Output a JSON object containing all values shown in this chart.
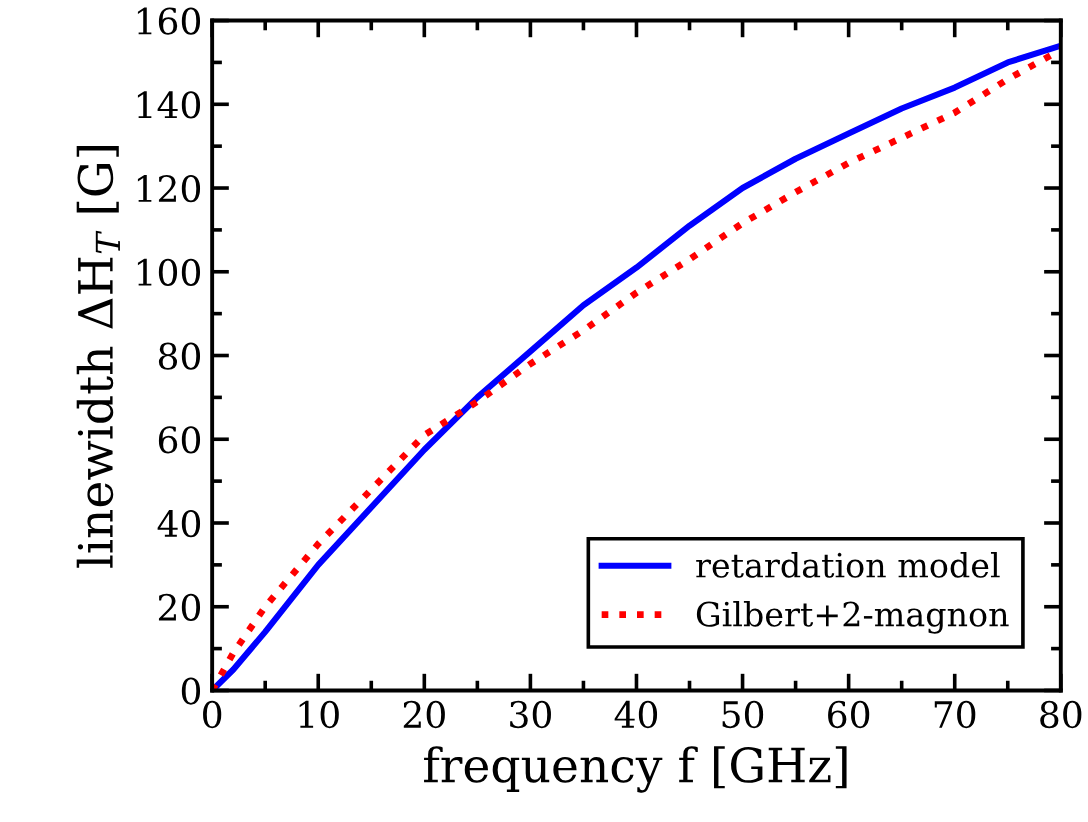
{
  "chart_data": {
    "type": "line",
    "xlabel": "frequency f [GHz]",
    "ylabel": "linewidth ΔH$_{T}$ [G]",
    "xlim": [
      0,
      80
    ],
    "ylim": [
      0,
      160
    ],
    "xticks": [
      0,
      10,
      20,
      30,
      40,
      50,
      60,
      70,
      80
    ],
    "yticks": [
      0,
      20,
      40,
      60,
      80,
      100,
      120,
      140,
      160
    ],
    "grid": false,
    "legend": "bottom right",
    "marker": "none",
    "series": [
      {
        "name": "retardation model",
        "color": "#0000ff",
        "line_style": "solid",
        "x": [
          0,
          2,
          5,
          10,
          20,
          25,
          30,
          35,
          40,
          45,
          50,
          55,
          60,
          65,
          70,
          75,
          80
        ],
        "values": [
          0,
          5,
          14,
          30,
          57.5,
          70,
          81,
          92,
          101,
          111,
          120,
          127,
          133,
          139,
          144,
          150,
          154
        ]
      },
      {
        "name": "Gilbert+2-magnon",
        "color": "#ff0000",
        "line_style": "dotted",
        "x": [
          0,
          2,
          5,
          10,
          20,
          25,
          30,
          35,
          40,
          45,
          50,
          55,
          60,
          65,
          70,
          75,
          80
        ],
        "values": [
          0,
          9,
          20,
          35,
          61,
          69,
          78,
          86,
          95,
          103,
          111.6,
          119,
          126,
          132,
          138,
          146,
          153
        ]
      }
    ]
  }
}
